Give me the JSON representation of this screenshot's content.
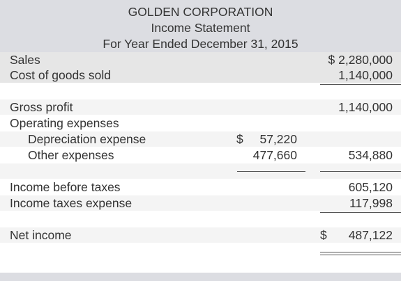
{
  "header": {
    "company": "GOLDEN CORPORATION",
    "statement": "Income Statement",
    "period": "For Year Ended December 31, 2015"
  },
  "rows": {
    "sales": {
      "label": "Sales",
      "amount": "$ 2,280,000"
    },
    "cogs": {
      "label": "Cost of goods sold",
      "amount": "1,140,000"
    },
    "gross_profit": {
      "label": "Gross profit",
      "amount": "1,140,000"
    },
    "operating_expenses": {
      "label": "Operating expenses"
    },
    "depreciation": {
      "label": "Depreciation expense",
      "amount": "57,220",
      "currency": "$"
    },
    "other_expenses": {
      "label": "Other expenses",
      "amount": "477,660",
      "total": "534,880"
    },
    "income_before_taxes": {
      "label": "Income before taxes",
      "amount": "605,120"
    },
    "income_taxes": {
      "label": "Income taxes expense",
      "amount": "117,998"
    },
    "net_income": {
      "label": "Net income",
      "currency": "$",
      "amount": "487,122"
    }
  }
}
